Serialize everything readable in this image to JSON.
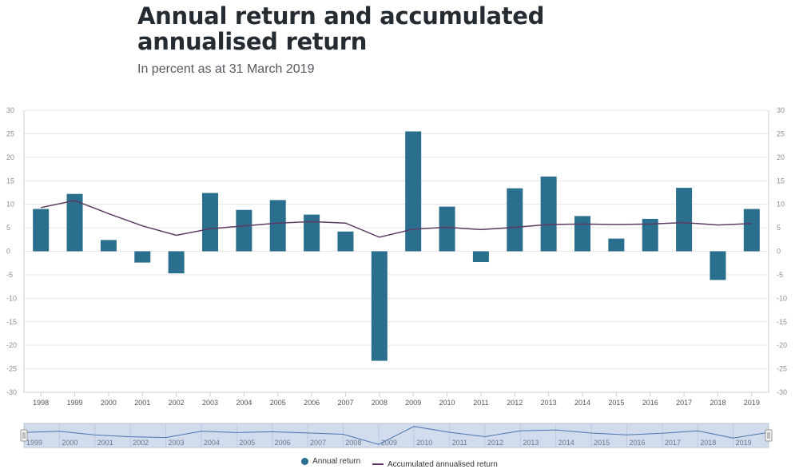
{
  "chart_data": {
    "type": "bar",
    "title": "Annual return and accumulated annualised return",
    "subtitle": "In percent as at 31 March 2019",
    "categories": [
      "1998",
      "1999",
      "2000",
      "2001",
      "2002",
      "2003",
      "2004",
      "2005",
      "2006",
      "2007",
      "2008",
      "2009",
      "2010",
      "2011",
      "2012",
      "2013",
      "2014",
      "2015",
      "2016",
      "2017",
      "2018",
      "2019"
    ],
    "series": [
      {
        "name": "Annual return",
        "type": "bar",
        "color": "#2b6f8f",
        "values": [
          9.0,
          12.2,
          2.4,
          -2.4,
          -4.7,
          12.4,
          8.8,
          10.9,
          7.8,
          4.2,
          -23.3,
          25.5,
          9.5,
          -2.3,
          13.4,
          15.9,
          7.5,
          2.7,
          6.9,
          13.5,
          -6.1,
          9.0
        ]
      },
      {
        "name": "Accumulated annualised return",
        "type": "line",
        "color": "#5c3a63",
        "values": [
          9.3,
          10.8,
          8.0,
          5.4,
          3.4,
          4.8,
          5.4,
          6.0,
          6.3,
          6.0,
          3.0,
          4.7,
          5.1,
          4.6,
          5.1,
          5.7,
          5.8,
          5.7,
          5.8,
          6.1,
          5.6,
          5.9
        ]
      }
    ],
    "yticks": [
      30,
      25,
      20,
      15,
      10,
      5,
      0,
      -5,
      -10,
      -15,
      -20,
      -25,
      -30
    ],
    "ylim": [
      -30,
      30
    ],
    "xlabel": "",
    "ylabel": "",
    "navigator_labels": [
      "1999",
      "2000",
      "2001",
      "2002",
      "2003",
      "2004",
      "2005",
      "2006",
      "2007",
      "2008",
      "2009",
      "2010",
      "2011",
      "2012",
      "2013",
      "2014",
      "2015",
      "2016",
      "2017",
      "2018",
      "2019"
    ],
    "legend": {
      "position": "bottom-center",
      "items": [
        "Annual return",
        "Accumulated annualised return"
      ]
    }
  }
}
